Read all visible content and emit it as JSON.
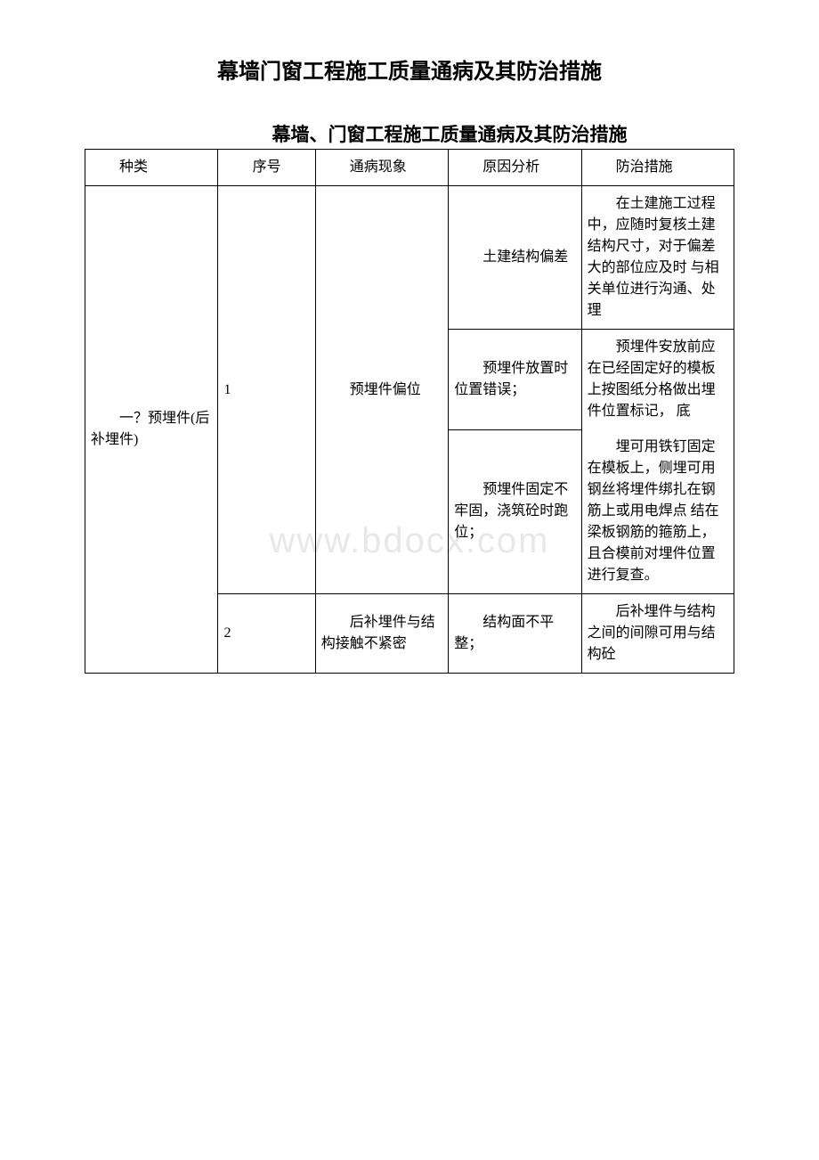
{
  "document": {
    "main_title": "幕墙门窗工程施工质量通病及其防治措施",
    "sub_title": "幕墙、门窗工程施工质量通病及其防治措施",
    "watermark": "www.bdocx.com"
  },
  "table": {
    "columns": {
      "type": "种类",
      "seq": "序号",
      "problem": "通病现象",
      "reason": "原因分析",
      "measure": "防治措施"
    },
    "column_widths": [
      "20.5%",
      "15%",
      "20.5%",
      "20.5%",
      "23.5%"
    ],
    "border_color": "#000000",
    "font_size": 16,
    "rows": [
      {
        "type": "一？预埋件(后补埋件)",
        "seq": "1",
        "problem": "预埋件偏位",
        "sub_rows": [
          {
            "reason": "土建结构偏差",
            "measure": "在土建施工过程中，应随时复核土建结构尺寸，对于偏差大的部位应及时 与相关单位进行沟通、处理"
          },
          {
            "reason": "预埋件放置时位置错误；",
            "measure_top": "预埋件安放前应在已经固定好的模板上按图纸分格做出埋件位置标记， 底"
          },
          {
            "reason": "预埋件固定不牢固，浇筑砼时跑位；",
            "measure_bottom": "埋可用铁钉固定在模板上，侧埋可用钢丝将埋件绑扎在钢筋上或用电焊点 结在梁板钢筋的箍筋上，且合模前对埋件位置进行复查。"
          }
        ]
      },
      {
        "seq": "2",
        "problem": "后补埋件与结构接触不紧密",
        "reason": "结构面不平整；",
        "measure": "后补埋件与结构之间的间隙可用与结构砼"
      }
    ]
  },
  "styling": {
    "background_color": "#ffffff",
    "text_color": "#000000",
    "title_fontsize": 24,
    "subtitle_fontsize": 21,
    "body_fontsize": 16,
    "watermark_color": "#e8e8e8",
    "watermark_fontsize": 40,
    "font_family": "SimSun"
  }
}
